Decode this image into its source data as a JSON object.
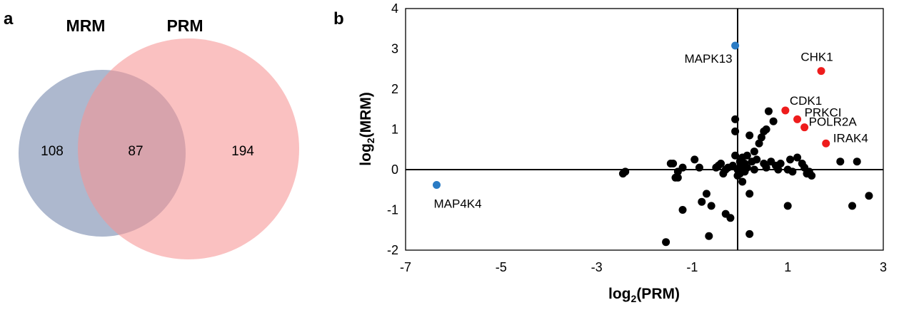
{
  "panels": {
    "a": "a",
    "b": "b"
  },
  "venn": {
    "left_label": "MRM",
    "right_label": "PRM",
    "left_only": "108",
    "overlap": "87",
    "right_only": "194",
    "left_color": "#8e9cbb",
    "right_color": "#f79494"
  },
  "chart_data": {
    "type": "scatter",
    "xlabel": "log₂(PRM)",
    "ylabel": "log₂(MRM)",
    "xlim": [
      -7,
      3
    ],
    "ylim": [
      -2,
      4
    ],
    "xticks": [
      -7,
      -5,
      -3,
      -1,
      1,
      3
    ],
    "yticks": [
      -2,
      -1,
      0,
      1,
      2,
      3,
      4
    ],
    "grid": false,
    "colors": {
      "default": "#000000",
      "red": "#ee1c1c",
      "blue": "#2a7bc4"
    },
    "labeled_points": [
      {
        "label": "MAPK13",
        "x": -0.1,
        "y": 3.08,
        "color": "blue"
      },
      {
        "label": "MAP4K4",
        "x": -6.35,
        "y": -0.38,
        "color": "blue"
      },
      {
        "label": "CHK1",
        "x": 1.7,
        "y": 2.45,
        "color": "red"
      },
      {
        "label": "CDK1",
        "x": 0.95,
        "y": 1.47,
        "color": "red"
      },
      {
        "label": "PRKCI",
        "x": 1.2,
        "y": 1.25,
        "color": "red"
      },
      {
        "label": "POLR2A",
        "x": 1.35,
        "y": 1.05,
        "color": "red"
      },
      {
        "label": "IRAK4",
        "x": 1.8,
        "y": 0.65,
        "color": "red"
      }
    ],
    "points": [
      [
        -2.45,
        -0.1
      ],
      [
        -2.4,
        -0.05
      ],
      [
        -1.55,
        -1.8
      ],
      [
        -1.45,
        0.15
      ],
      [
        -1.4,
        0.15
      ],
      [
        -1.35,
        -0.2
      ],
      [
        -1.3,
        -0.2
      ],
      [
        -1.3,
        -0.05
      ],
      [
        -1.2,
        -1.0
      ],
      [
        -1.2,
        0.05
      ],
      [
        -0.95,
        0.25
      ],
      [
        -0.85,
        0.05
      ],
      [
        -0.8,
        -0.8
      ],
      [
        -0.7,
        -0.6
      ],
      [
        -0.65,
        -1.65
      ],
      [
        -0.6,
        -0.9
      ],
      [
        -0.5,
        0.05
      ],
      [
        -0.45,
        0.1
      ],
      [
        -0.4,
        0.15
      ],
      [
        -0.35,
        -0.1
      ],
      [
        -0.3,
        0.0
      ],
      [
        -0.3,
        -1.1
      ],
      [
        -0.25,
        0.05
      ],
      [
        -0.2,
        -1.2
      ],
      [
        -0.15,
        0.1
      ],
      [
        -0.1,
        0.35
      ],
      [
        -0.1,
        1.25
      ],
      [
        -0.1,
        0.95
      ],
      [
        -0.05,
        0.0
      ],
      [
        -0.05,
        -0.15
      ],
      [
        0.0,
        0.05
      ],
      [
        0.0,
        -0.1
      ],
      [
        0.0,
        0.2
      ],
      [
        0.05,
        0.3
      ],
      [
        0.05,
        -0.3
      ],
      [
        0.1,
        -0.05
      ],
      [
        0.1,
        0.15
      ],
      [
        0.15,
        0.35
      ],
      [
        0.15,
        0.05
      ],
      [
        0.2,
        -0.6
      ],
      [
        0.2,
        -1.6
      ],
      [
        0.2,
        0.85
      ],
      [
        0.25,
        0.2
      ],
      [
        0.3,
        0.45
      ],
      [
        0.3,
        0.0
      ],
      [
        0.35,
        0.25
      ],
      [
        0.4,
        0.65
      ],
      [
        0.45,
        0.8
      ],
      [
        0.5,
        0.15
      ],
      [
        0.5,
        0.95
      ],
      [
        0.55,
        1.0
      ],
      [
        0.55,
        0.05
      ],
      [
        0.6,
        1.45
      ],
      [
        0.65,
        0.2
      ],
      [
        0.7,
        1.2
      ],
      [
        0.75,
        0.1
      ],
      [
        0.8,
        0.0
      ],
      [
        0.85,
        0.15
      ],
      [
        1.0,
        0.0
      ],
      [
        1.0,
        -0.9
      ],
      [
        1.05,
        0.25
      ],
      [
        1.1,
        -0.05
      ],
      [
        1.2,
        0.3
      ],
      [
        1.3,
        0.15
      ],
      [
        1.35,
        0.05
      ],
      [
        1.4,
        -0.1
      ],
      [
        1.45,
        -0.05
      ],
      [
        1.5,
        -0.15
      ],
      [
        2.1,
        0.2
      ],
      [
        2.35,
        -0.9
      ],
      [
        2.45,
        0.2
      ],
      [
        2.7,
        -0.65
      ]
    ]
  }
}
